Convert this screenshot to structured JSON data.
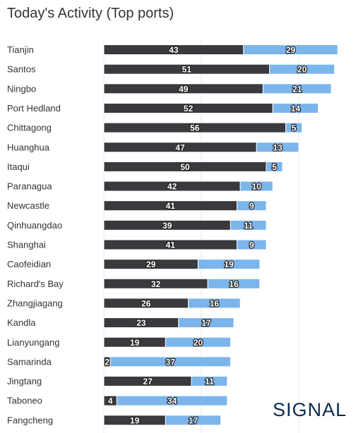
{
  "header": {
    "title": "Today's Activity (Top ports)"
  },
  "brand": {
    "logo_text": "SIGNAL"
  },
  "colors": {
    "series_dark": "#3a3a3e",
    "series_light": "#7cb5ec",
    "grid": "#e6e6e6"
  },
  "chart_data": {
    "type": "bar",
    "orientation": "horizontal",
    "stacked": true,
    "title": "Today's Activity (Top ports)",
    "categories": [
      "Tianjin",
      "Santos",
      "Ningbo",
      "Port Hedland",
      "Chittagong",
      "Huanghua",
      "Itaqui",
      "Paranagua",
      "Newcastle",
      "Qinhuangdao",
      "Shanghai",
      "Caofeidian",
      "Richard's Bay",
      "Zhangjiagang",
      "Kandla",
      "Lianyungang",
      "Samarinda",
      "Jingtang",
      "Taboneo",
      "Fangcheng"
    ],
    "series": [
      {
        "values": [
          43,
          51,
          49,
          52,
          56,
          47,
          50,
          42,
          41,
          39,
          41,
          29,
          32,
          26,
          23,
          19,
          2,
          27,
          4,
          19
        ]
      },
      {
        "values": [
          29,
          20,
          21,
          14,
          5,
          13,
          5,
          10,
          9,
          11,
          9,
          19,
          16,
          16,
          17,
          20,
          37,
          11,
          34,
          17
        ]
      }
    ],
    "xlim": [
      0,
      80
    ],
    "grid": true,
    "legend": "none"
  }
}
